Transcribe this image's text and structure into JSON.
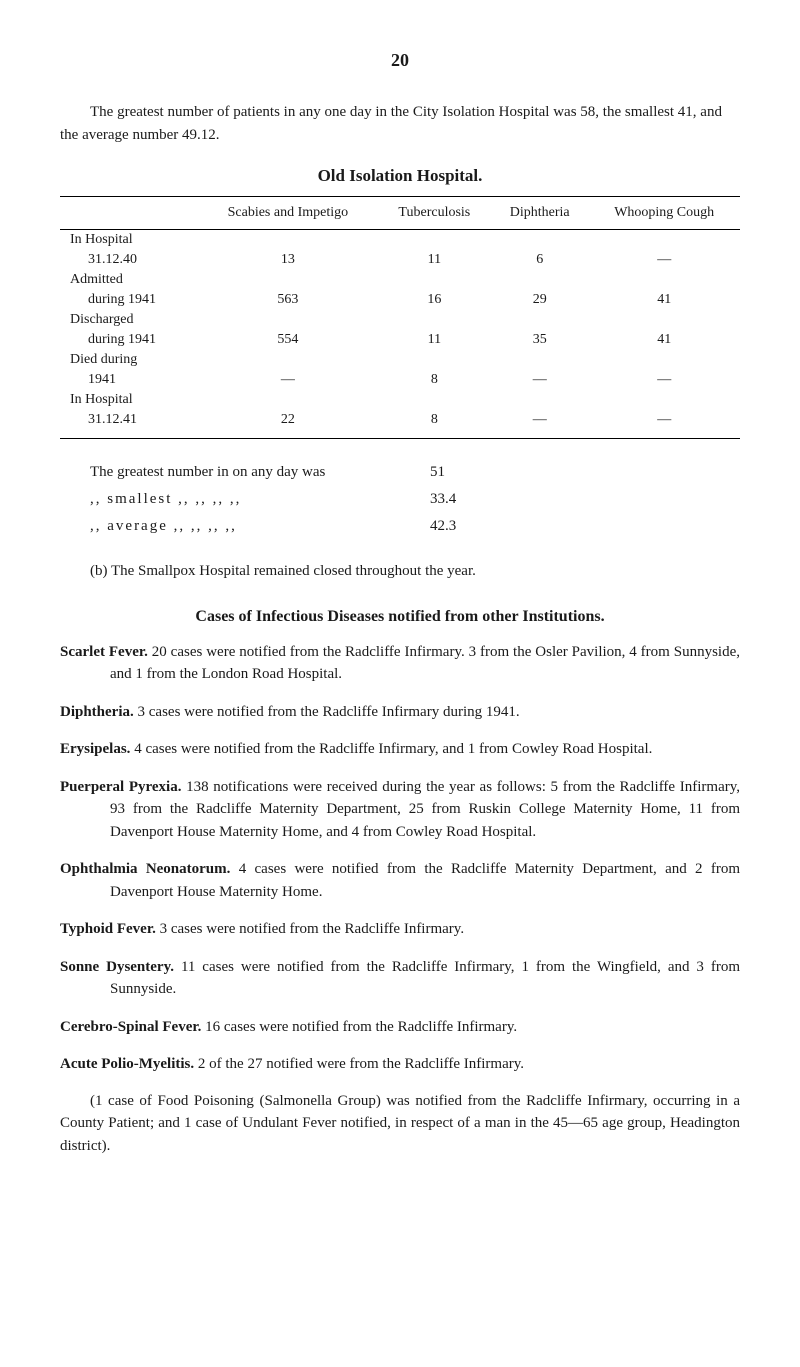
{
  "page_number": "20",
  "intro": "The greatest number of patients in any one day in the City Isolation Hospital was 58, the smallest 41, and the average number 49.12.",
  "table": {
    "title": "Old Isolation Hospital.",
    "headers": [
      "",
      "Scabies and Impetigo",
      "Tuberculosis",
      "Diphtheria",
      "Whooping Cough"
    ],
    "rows": [
      {
        "label": "In Hospital",
        "sub": "31.12.40",
        "cells": [
          "13",
          "11",
          "6",
          "—"
        ]
      },
      {
        "label": "Admitted",
        "sub": "during 1941",
        "cells": [
          "563",
          "16",
          "29",
          "41"
        ]
      },
      {
        "label": "Discharged",
        "sub": "during 1941",
        "cells": [
          "554",
          "11",
          "35",
          "41"
        ]
      },
      {
        "label": "Died during",
        "sub": "1941",
        "cells": [
          "—",
          "8",
          "—",
          "—"
        ]
      },
      {
        "label": "In Hospital",
        "sub": "31.12.41",
        "cells": [
          "22",
          "8",
          "—",
          "—"
        ]
      }
    ]
  },
  "summary": {
    "line1_label": "The greatest number in on any day was",
    "line1_val": "51",
    "line2_label": ",,   smallest      ,,      ,,      ,,      ,,",
    "line2_val": "33.4",
    "line3_label": ",,   average       ,,      ,,      ,,      ,,",
    "line3_val": "42.3"
  },
  "sub_b": "(b) The Smallpox Hospital remained closed throughout the year.",
  "cases_title": "Cases of Infectious Diseases notified from other Institutions.",
  "diseases": [
    {
      "name": "Scarlet Fever.",
      "text": "  20 cases were notified from the Radcliffe Infirmary. 3 from the Osler Pavilion, 4 from Sunnyside, and 1 from the London Road Hospital."
    },
    {
      "name": "Diphtheria.",
      "text": "  3 cases were notified from the Radcliffe Infirmary during 1941."
    },
    {
      "name": "Erysipelas.",
      "text": "  4 cases were notified from the Radcliffe Infirmary, and 1 from Cowley Road Hospital."
    },
    {
      "name": "Puerperal Pyrexia.",
      "text": "  138 notifications were received during the year as follows: 5 from the Radcliffe Infirmary, 93 from the Radcliffe Maternity Department, 25 from Ruskin College Maternity Home, 11 from Davenport House Maternity Home, and 4 from Cowley Road Hospital."
    },
    {
      "name": "Ophthalmia Neonatorum.",
      "text": "  4 cases were notified from the Radcliffe Maternity Department, and 2 from Davenport House Maternity Home."
    },
    {
      "name": "Typhoid Fever.",
      "text": "  3 cases were notified from the Radcliffe Infirmary."
    },
    {
      "name": "Sonne Dysentery.",
      "text": "  11 cases were notified from the Radcliffe Infirmary, 1 from the Wingfield, and 3 from Sunnyside."
    },
    {
      "name": "Cerebro-Spinal Fever.",
      "text": "  16 cases were notified from the Radcliffe Infirmary."
    },
    {
      "name": "Acute Polio-Myelitis.",
      "text": "  2 of the 27 notified were from the Radcliffe Infirmary."
    }
  ],
  "final": "(1 case of Food Poisoning (Salmonella Group) was notified from the Radcliffe Infirmary, occurring in a County Patient; and 1 case of Undulant Fever notified, in respect of a man in the 45—65 age group, Headington district)."
}
